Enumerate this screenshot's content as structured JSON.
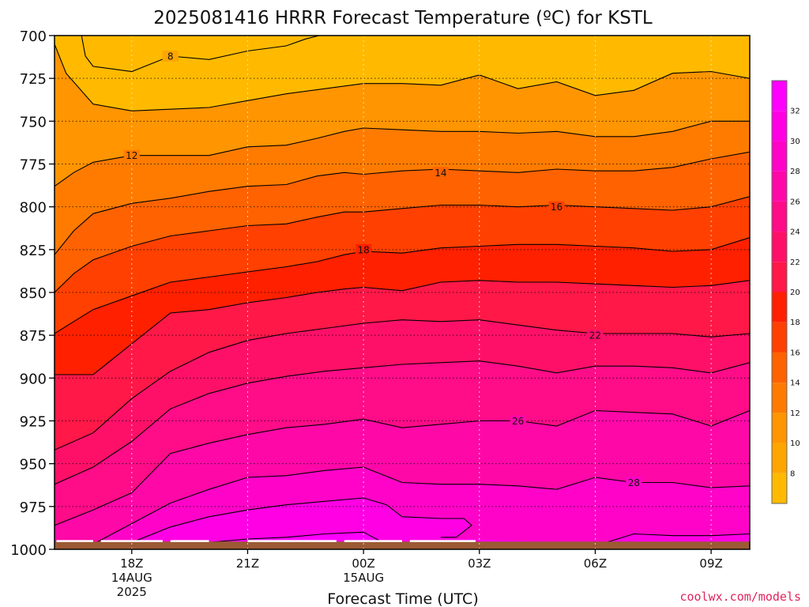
{
  "chart_data": {
    "type": "heatmap",
    "title": "2025081416 HRRR Forecast Temperature (ºC) for KSTL",
    "xlabel": "Forecast Time (UTC)",
    "ylabel": "",
    "credit": "coolwx.com/models",
    "x_range_hours_utc": [
      16,
      34
    ],
    "y_range_hpa": [
      700,
      1000
    ],
    "y_inverted": true,
    "grid": true,
    "x_ticks": [
      {
        "hour": 18,
        "lines": [
          "18Z",
          "14AUG",
          "2025"
        ]
      },
      {
        "hour": 21,
        "lines": [
          "21Z"
        ]
      },
      {
        "hour": 24,
        "lines": [
          "00Z",
          "15AUG"
        ]
      },
      {
        "hour": 27,
        "lines": [
          "03Z"
        ]
      },
      {
        "hour": 30,
        "lines": [
          "06Z"
        ]
      },
      {
        "hour": 33,
        "lines": [
          "09Z"
        ]
      }
    ],
    "y_ticks": [
      700,
      725,
      750,
      775,
      800,
      825,
      850,
      875,
      900,
      925,
      950,
      975,
      1000
    ],
    "colorbar": {
      "min": 6,
      "max": 34,
      "levels": [
        {
          "lo": 6,
          "hi": 8,
          "color": "#FFBA00"
        },
        {
          "lo": 8,
          "hi": 10,
          "color": "#FFA500"
        },
        {
          "lo": 10,
          "hi": 12,
          "color": "#FF9500"
        },
        {
          "lo": 12,
          "hi": 14,
          "color": "#FF7B00"
        },
        {
          "lo": 14,
          "hi": 16,
          "color": "#FF6200"
        },
        {
          "lo": 16,
          "hi": 18,
          "color": "#FF4000"
        },
        {
          "lo": 18,
          "hi": 20,
          "color": "#FF2000"
        },
        {
          "lo": 20,
          "hi": 22,
          "color": "#FF1848"
        },
        {
          "lo": 22,
          "hi": 24,
          "color": "#FF1068"
        },
        {
          "lo": 24,
          "hi": 26,
          "color": "#FF0C88"
        },
        {
          "lo": 26,
          "hi": 28,
          "color": "#FF08A8"
        },
        {
          "lo": 28,
          "hi": 30,
          "color": "#FF04C8"
        },
        {
          "lo": 30,
          "hi": 32,
          "color": "#FF00E4"
        },
        {
          "lo": 32,
          "hi": 34,
          "color": "#FF00FF"
        }
      ],
      "tick_labels": [
        "8",
        "10",
        "12",
        "14",
        "16",
        "18",
        "20",
        "22",
        "24",
        "26",
        "28",
        "30",
        "32"
      ]
    },
    "isotherms": [
      {
        "value": 8,
        "label": "8",
        "label_at": [
          19.0,
          712
        ],
        "points": [
          [
            16.7,
            700
          ],
          [
            16.8,
            712
          ],
          [
            17.0,
            718
          ],
          [
            18.0,
            721
          ],
          [
            19.0,
            712
          ],
          [
            20.0,
            714
          ],
          [
            21.0,
            709
          ],
          [
            22.0,
            706
          ],
          [
            22.5,
            702
          ],
          [
            23.2,
            698
          ]
        ]
      },
      {
        "value": 10,
        "label": "",
        "points": [
          [
            16.0,
            705
          ],
          [
            16.3,
            722
          ],
          [
            17.0,
            740
          ],
          [
            18.0,
            744
          ],
          [
            20.0,
            742
          ],
          [
            21.0,
            738
          ],
          [
            22.0,
            734
          ],
          [
            23.0,
            731
          ],
          [
            24.0,
            728
          ],
          [
            25.0,
            728
          ],
          [
            26.0,
            729
          ],
          [
            27.0,
            723
          ],
          [
            28.0,
            731
          ],
          [
            29.0,
            727
          ],
          [
            30.0,
            735
          ],
          [
            31.0,
            732
          ],
          [
            32.0,
            722
          ],
          [
            33.0,
            721
          ],
          [
            34.0,
            725
          ]
        ]
      },
      {
        "value": 12,
        "label": "12",
        "label_at": [
          18.0,
          770
        ],
        "points": [
          [
            16.0,
            788
          ],
          [
            16.5,
            780
          ],
          [
            17.0,
            774
          ],
          [
            18.0,
            770
          ],
          [
            20.0,
            770
          ],
          [
            21.0,
            765
          ],
          [
            22.0,
            764
          ],
          [
            22.8,
            760
          ],
          [
            23.5,
            756
          ],
          [
            24.0,
            754
          ],
          [
            25.0,
            755
          ],
          [
            26.0,
            756
          ],
          [
            27.0,
            756
          ],
          [
            28.0,
            757
          ],
          [
            29.0,
            756
          ],
          [
            30.0,
            759
          ],
          [
            31.0,
            759
          ],
          [
            32.0,
            756
          ],
          [
            33.0,
            750
          ],
          [
            34.0,
            750
          ]
        ]
      },
      {
        "value": 14,
        "label": "14",
        "label_at": [
          26.0,
          780
        ],
        "points": [
          [
            16.0,
            828
          ],
          [
            16.5,
            814
          ],
          [
            17.0,
            804
          ],
          [
            18.0,
            798
          ],
          [
            19.0,
            795
          ],
          [
            20.0,
            791
          ],
          [
            21.0,
            788
          ],
          [
            22.0,
            787
          ],
          [
            22.8,
            782
          ],
          [
            23.5,
            780
          ],
          [
            24.0,
            781
          ],
          [
            25.0,
            779
          ],
          [
            26.0,
            778
          ],
          [
            27.0,
            779
          ],
          [
            28.0,
            780
          ],
          [
            29.0,
            778
          ],
          [
            30.0,
            779
          ],
          [
            31.0,
            779
          ],
          [
            32.0,
            777
          ],
          [
            33.0,
            772
          ],
          [
            34.0,
            768
          ]
        ]
      },
      {
        "value": 16,
        "label": "16",
        "label_at": [
          29.0,
          800
        ],
        "points": [
          [
            16.0,
            850
          ],
          [
            16.5,
            839
          ],
          [
            17.0,
            831
          ],
          [
            18.0,
            823
          ],
          [
            19.0,
            817
          ],
          [
            20.0,
            814
          ],
          [
            21.0,
            811
          ],
          [
            22.0,
            810
          ],
          [
            22.8,
            806
          ],
          [
            23.5,
            803
          ],
          [
            24.0,
            803
          ],
          [
            25.0,
            801
          ],
          [
            26.0,
            799
          ],
          [
            27.0,
            799
          ],
          [
            28.0,
            800
          ],
          [
            29.0,
            799
          ],
          [
            30.0,
            800
          ],
          [
            31.0,
            801
          ],
          [
            32.0,
            802
          ],
          [
            33.0,
            800
          ],
          [
            34.0,
            794
          ]
        ]
      },
      {
        "value": 18,
        "label": "18",
        "label_at": [
          24.0,
          825
        ],
        "points": [
          [
            16.0,
            874
          ],
          [
            16.5,
            867
          ],
          [
            17.0,
            860
          ],
          [
            18.0,
            852
          ],
          [
            19.0,
            844
          ],
          [
            20.0,
            841
          ],
          [
            21.0,
            838
          ],
          [
            22.0,
            835
          ],
          [
            22.8,
            832
          ],
          [
            23.5,
            828
          ],
          [
            24.0,
            826
          ],
          [
            25.0,
            827
          ],
          [
            26.0,
            824
          ],
          [
            27.0,
            823
          ],
          [
            28.0,
            822
          ],
          [
            29.0,
            822
          ],
          [
            30.0,
            823
          ],
          [
            31.0,
            824
          ],
          [
            32.0,
            826
          ],
          [
            33.0,
            825
          ],
          [
            34.0,
            818
          ]
        ]
      },
      {
        "value": 20,
        "label": "",
        "points": [
          [
            16.0,
            898
          ],
          [
            17.0,
            898
          ],
          [
            18.0,
            880
          ],
          [
            19.0,
            862
          ],
          [
            20.0,
            860
          ],
          [
            21.0,
            856
          ],
          [
            22.0,
            853
          ],
          [
            22.8,
            850
          ],
          [
            23.5,
            848
          ],
          [
            24.0,
            847
          ],
          [
            25.0,
            849
          ],
          [
            26.0,
            844
          ],
          [
            27.0,
            843
          ],
          [
            28.0,
            844
          ],
          [
            29.0,
            844
          ],
          [
            30.0,
            845
          ],
          [
            31.0,
            846
          ],
          [
            32.0,
            847
          ],
          [
            33.0,
            846
          ],
          [
            34.0,
            843
          ]
        ]
      },
      {
        "value": 22,
        "label": "22",
        "label_at": [
          30.0,
          875
        ],
        "points": [
          [
            16.0,
            942
          ],
          [
            17.0,
            932
          ],
          [
            18.0,
            912
          ],
          [
            19.0,
            896
          ],
          [
            20.0,
            885
          ],
          [
            21.0,
            878
          ],
          [
            22.0,
            874
          ],
          [
            23.0,
            871
          ],
          [
            24.0,
            868
          ],
          [
            25.0,
            866
          ],
          [
            26.0,
            867
          ],
          [
            27.0,
            866
          ],
          [
            28.0,
            869
          ],
          [
            29.0,
            872
          ],
          [
            30.0,
            874
          ],
          [
            31.0,
            874
          ],
          [
            32.0,
            874
          ],
          [
            33.0,
            876
          ],
          [
            34.0,
            874
          ]
        ]
      },
      {
        "value": 24,
        "label": "",
        "points": [
          [
            16.0,
            962
          ],
          [
            17.0,
            952
          ],
          [
            18.0,
            937
          ],
          [
            19.0,
            918
          ],
          [
            20.0,
            909
          ],
          [
            21.0,
            903
          ],
          [
            22.0,
            899
          ],
          [
            23.0,
            896
          ],
          [
            24.0,
            894
          ],
          [
            25.0,
            892
          ],
          [
            26.0,
            891
          ],
          [
            27.0,
            890
          ],
          [
            28.0,
            893
          ],
          [
            29.0,
            897
          ],
          [
            30.0,
            893
          ],
          [
            31.0,
            893
          ],
          [
            32.0,
            894
          ],
          [
            33.0,
            897
          ],
          [
            34.0,
            891
          ]
        ]
      },
      {
        "value": 26,
        "label": "26",
        "label_at": [
          28.0,
          925
        ],
        "points": [
          [
            16.0,
            986
          ],
          [
            17.0,
            977
          ],
          [
            18.0,
            967
          ],
          [
            19.0,
            944
          ],
          [
            20.0,
            938
          ],
          [
            21.0,
            933
          ],
          [
            22.0,
            929
          ],
          [
            23.0,
            927
          ],
          [
            24.0,
            924
          ],
          [
            25.0,
            929
          ],
          [
            26.0,
            927
          ],
          [
            27.0,
            925
          ],
          [
            28.0,
            925
          ],
          [
            29.0,
            928
          ],
          [
            30.0,
            919
          ],
          [
            31.0,
            920
          ],
          [
            32.0,
            921
          ],
          [
            33.0,
            928
          ],
          [
            34.0,
            919
          ]
        ]
      },
      {
        "value": 28,
        "label": "28",
        "label_at": [
          31.0,
          961
        ],
        "points": [
          [
            16.0,
            1000
          ],
          [
            17.0,
            997
          ],
          [
            18.0,
            985
          ],
          [
            19.0,
            973
          ],
          [
            20.0,
            965
          ],
          [
            21.0,
            958
          ],
          [
            22.0,
            957
          ],
          [
            23.0,
            954
          ],
          [
            24.0,
            952
          ],
          [
            25.0,
            961
          ],
          [
            26.0,
            962
          ],
          [
            27.0,
            962
          ],
          [
            28.0,
            963
          ],
          [
            29.0,
            965
          ],
          [
            30.0,
            958
          ],
          [
            31.0,
            961
          ],
          [
            32.0,
            961
          ],
          [
            33.0,
            964
          ],
          [
            34.0,
            963
          ]
        ]
      },
      {
        "value": 30,
        "label": "",
        "points": [
          [
            17.5,
            1000
          ],
          [
            18.0,
            996
          ],
          [
            19.0,
            987
          ],
          [
            20.0,
            981
          ],
          [
            21.0,
            977
          ],
          [
            22.0,
            974
          ],
          [
            23.0,
            972
          ],
          [
            24.0,
            970
          ],
          [
            24.6,
            974
          ],
          [
            25.0,
            981
          ],
          [
            26.0,
            982
          ],
          [
            26.6,
            982
          ],
          [
            26.8,
            986
          ],
          [
            26.4,
            993
          ],
          [
            26.0,
            993
          ]
        ]
      },
      {
        "value": 30,
        "label": "",
        "points": [
          [
            30.0,
            998
          ],
          [
            31.0,
            991
          ],
          [
            32.0,
            992
          ],
          [
            33.0,
            992
          ],
          [
            34.0,
            991
          ]
        ]
      },
      {
        "value": 32,
        "label": "",
        "points": [
          [
            19.0,
            1000
          ],
          [
            20.0,
            996
          ],
          [
            21.0,
            994
          ],
          [
            22.0,
            993
          ],
          [
            23.0,
            991
          ],
          [
            24.0,
            990
          ],
          [
            24.5,
            996
          ]
        ]
      }
    ]
  }
}
